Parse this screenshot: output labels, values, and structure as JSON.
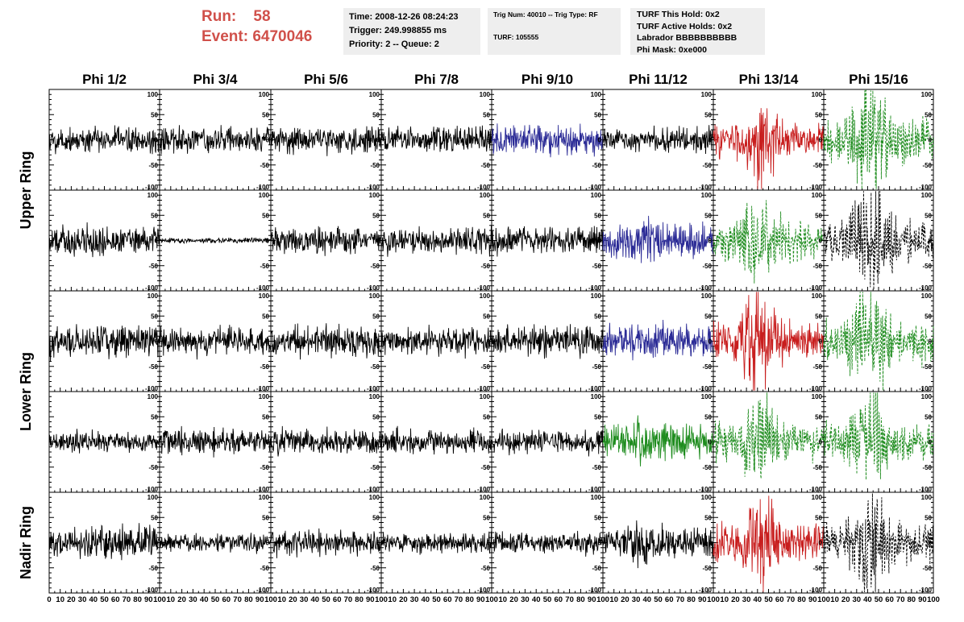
{
  "header": {
    "run_label": "Run:",
    "run_value": "58",
    "event_label": "Event:",
    "event_value": "6470046",
    "time": "Time: 2008-12-26 08:24:23",
    "trigger": "Trigger: 249.998855 ms",
    "priority": "Priority: 2 -- Queue: 2",
    "trig_num": "Trig Num: 40010 -- Trig Type: RF",
    "turf": "TURF: 105555",
    "turf_this_hold": "TURF This Hold: 0x2",
    "turf_active_holds": "TURF Active Holds: 0x2",
    "labrador": "Labrador BBBBBBBBBB",
    "phi_mask": "Phi Mask: 0xe000"
  },
  "chart_data": {
    "type": "line",
    "columns": [
      "Phi 1/2",
      "Phi 3/4",
      "Phi 5/6",
      "Phi 7/8",
      "Phi 9/10",
      "Phi 11/12",
      "Phi 13/14",
      "Phi 15/16"
    ],
    "row_groups": [
      {
        "label": "Upper Ring",
        "rows": [
          0,
          1
        ]
      },
      {
        "label": "Lower Ring",
        "rows": [
          2,
          3
        ]
      },
      {
        "label": "Nadir Ring",
        "rows": [
          4
        ]
      }
    ],
    "xlim": [
      0,
      100
    ],
    "ylim": [
      -100,
      100
    ],
    "x_tick_labels": [
      "0",
      "10",
      "20",
      "30",
      "40",
      "50",
      "60",
      "70",
      "80",
      "90",
      "100"
    ],
    "y_tick_labels": [
      "100",
      "50",
      "0",
      "-50",
      "-100"
    ],
    "colors": {
      "black": "#000000",
      "blue": "#2b2b96",
      "red": "#c81e1e",
      "green": "#1e8c1e"
    },
    "panels": [
      [
        {
          "color": "black",
          "amp": 16,
          "peak": 1.0
        },
        {
          "color": "black",
          "amp": 15,
          "peak": 1.0
        },
        {
          "color": "black",
          "amp": 15,
          "peak": 1.0
        },
        {
          "color": "black",
          "amp": 15,
          "peak": 1.0
        },
        {
          "color": "blue",
          "amp": 17,
          "peak": 1.2
        },
        {
          "color": "black",
          "amp": 14,
          "peak": 1.0
        },
        {
          "color": "red",
          "amp": 18,
          "peak": 3.0
        },
        {
          "color": "green",
          "amp": 24,
          "peak": 3.2,
          "dashed": true
        }
      ],
      [
        {
          "color": "black",
          "amp": 16,
          "peak": 1.3
        },
        {
          "color": "black",
          "amp": 3,
          "peak": 1.0
        },
        {
          "color": "black",
          "amp": 15,
          "peak": 1.0
        },
        {
          "color": "black",
          "amp": 15,
          "peak": 1.0
        },
        {
          "color": "black",
          "amp": 16,
          "peak": 1.0
        },
        {
          "color": "blue",
          "amp": 20,
          "peak": 1.3
        },
        {
          "color": "green",
          "amp": 22,
          "peak": 2.8,
          "dashed": true
        },
        {
          "color": "black",
          "amp": 24,
          "peak": 3.0,
          "dashed": true
        }
      ],
      [
        {
          "color": "black",
          "amp": 18,
          "peak": 1.0
        },
        {
          "color": "black",
          "amp": 16,
          "peak": 1.0
        },
        {
          "color": "black",
          "amp": 18,
          "peak": 1.0
        },
        {
          "color": "black",
          "amp": 16,
          "peak": 1.0
        },
        {
          "color": "black",
          "amp": 17,
          "peak": 1.0
        },
        {
          "color": "blue",
          "amp": 17,
          "peak": 1.5
        },
        {
          "color": "red",
          "amp": 22,
          "peak": 3.0
        },
        {
          "color": "green",
          "amp": 24,
          "peak": 3.0,
          "dashed": true
        }
      ],
      [
        {
          "color": "black",
          "amp": 12,
          "peak": 1.0
        },
        {
          "color": "black",
          "amp": 16,
          "peak": 1.0
        },
        {
          "color": "black",
          "amp": 15,
          "peak": 1.0
        },
        {
          "color": "black",
          "amp": 14,
          "peak": 1.0
        },
        {
          "color": "black",
          "amp": 14,
          "peak": 1.0
        },
        {
          "color": "green",
          "amp": 20,
          "peak": 1.5
        },
        {
          "color": "green",
          "amp": 20,
          "peak": 3.0,
          "dashed": true
        },
        {
          "color": "green",
          "amp": 22,
          "peak": 2.7,
          "dashed": true
        }
      ],
      [
        {
          "color": "black",
          "amp": 17,
          "peak": 1.3
        },
        {
          "color": "black",
          "amp": 11,
          "peak": 1.0
        },
        {
          "color": "black",
          "amp": 15,
          "peak": 1.0
        },
        {
          "color": "black",
          "amp": 12,
          "peak": 1.0
        },
        {
          "color": "black",
          "amp": 12,
          "peak": 1.0
        },
        {
          "color": "black",
          "amp": 17,
          "peak": 1.5
        },
        {
          "color": "red",
          "amp": 20,
          "peak": 3.0
        },
        {
          "color": "black",
          "amp": 22,
          "peak": 3.8,
          "dashed": true
        }
      ]
    ]
  }
}
